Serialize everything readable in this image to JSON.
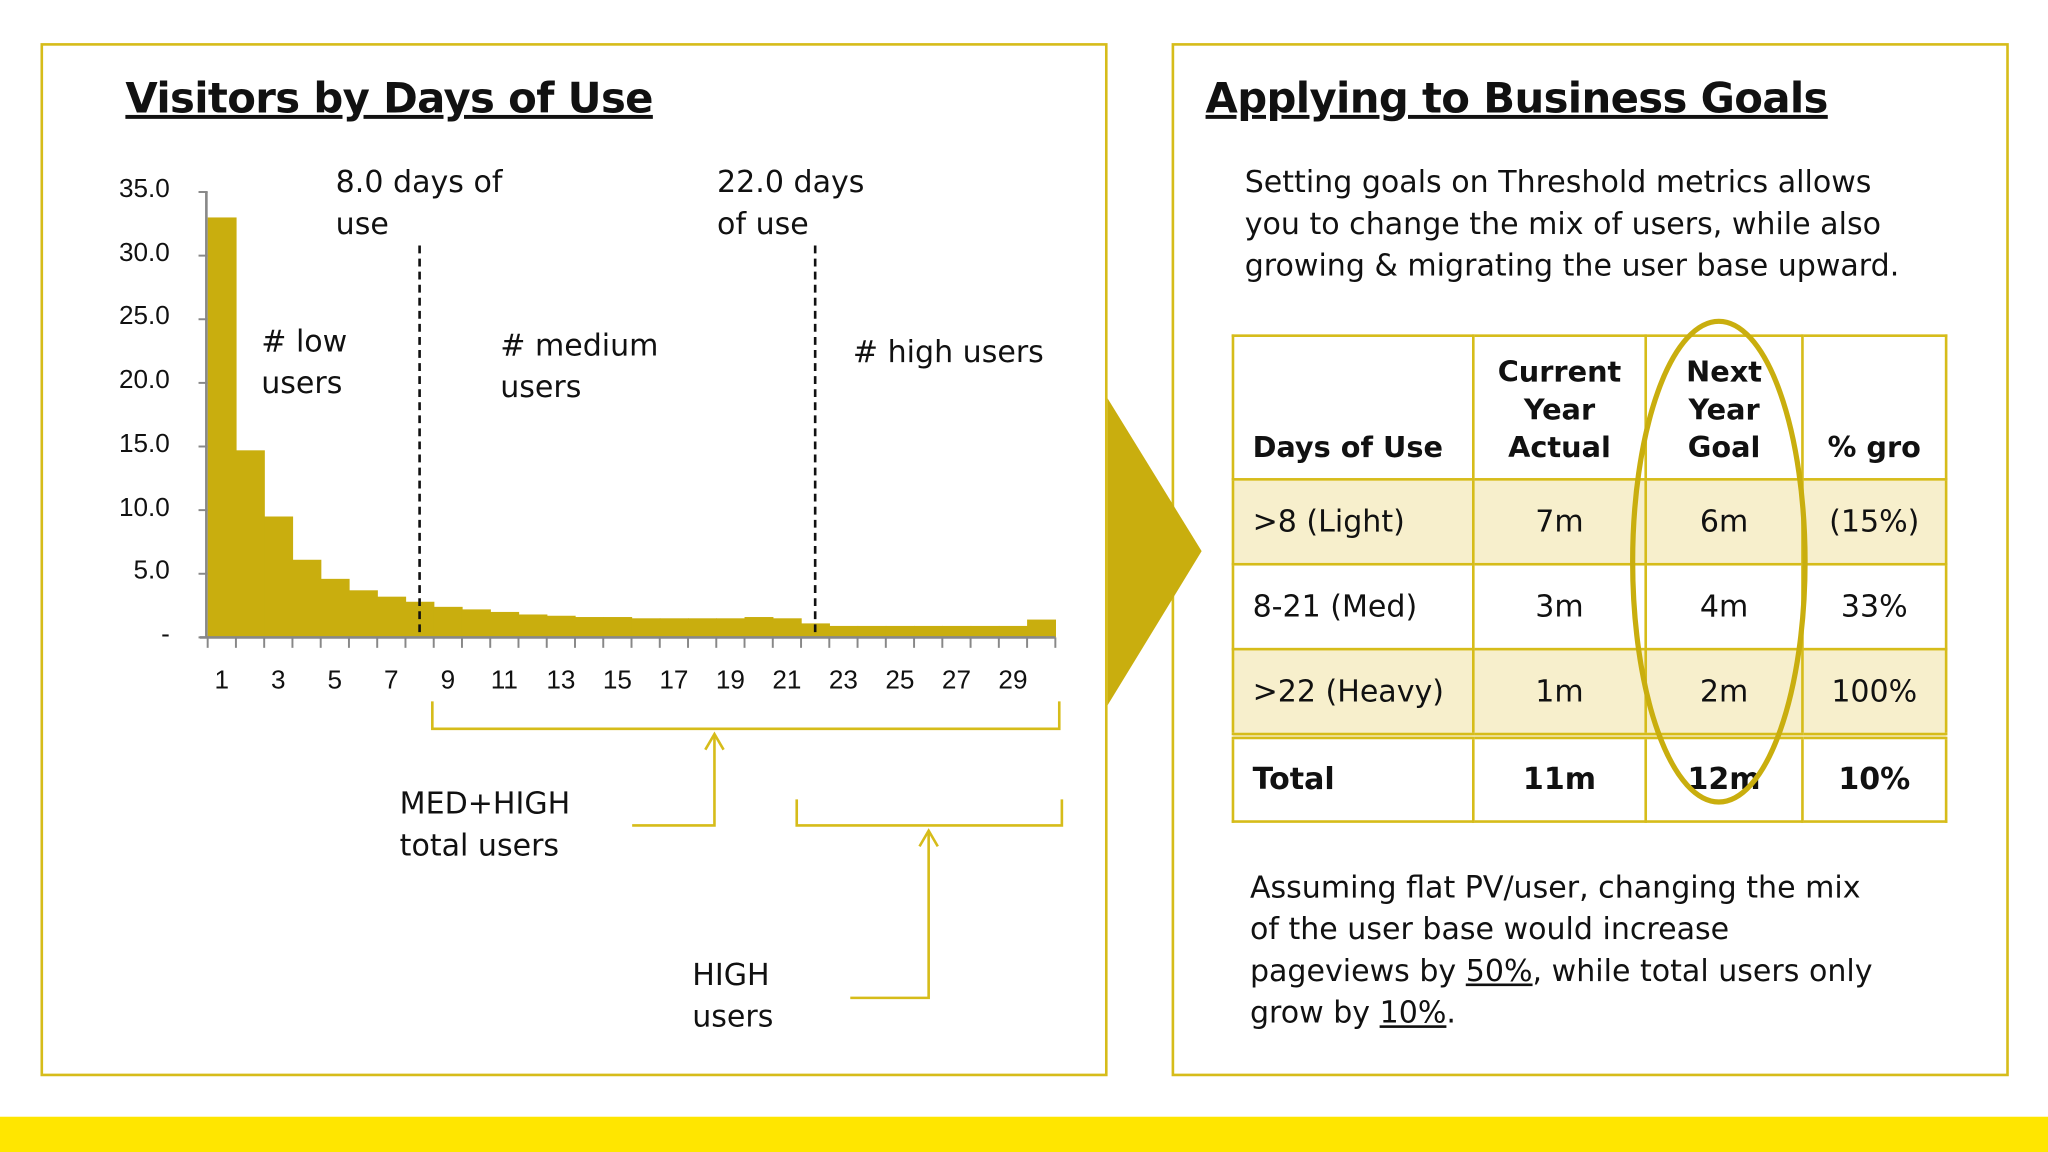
{
  "colors": {
    "accent": "#D6BC1A",
    "bar": "#C9AE0E",
    "band": "#FFE600",
    "row_highlight": "#F7EFCC"
  },
  "left": {
    "title": "Visitors by Days of Use",
    "marker1": "8.0 days of\nuse",
    "marker2": "22.0 days\nof use",
    "label_low": "# low\nusers",
    "label_medium": "# medium\nusers",
    "label_high": "# high users",
    "callout_medhigh": "MED+HIGH\ntotal users",
    "callout_high": "HIGH\nusers"
  },
  "chart_data": {
    "type": "bar",
    "x": [
      1,
      2,
      3,
      4,
      5,
      6,
      7,
      8,
      9,
      10,
      11,
      12,
      13,
      14,
      15,
      16,
      17,
      18,
      19,
      20,
      21,
      22,
      23,
      24,
      25,
      26,
      27,
      28,
      29,
      30
    ],
    "values": [
      33.0,
      14.7,
      9.5,
      6.1,
      4.6,
      3.7,
      3.2,
      2.8,
      2.4,
      2.2,
      2.0,
      1.8,
      1.7,
      1.6,
      1.6,
      1.5,
      1.5,
      1.5,
      1.5,
      1.6,
      1.5,
      1.1,
      0.9,
      0.9,
      0.9,
      0.9,
      0.9,
      0.9,
      0.9,
      1.4
    ],
    "x_tick_labels": [
      "1",
      "3",
      "5",
      "7",
      "9",
      "11",
      "13",
      "15",
      "17",
      "19",
      "21",
      "23",
      "25",
      "27",
      "29"
    ],
    "y_tick_labels": [
      "-",
      "5.0",
      "10.0",
      "15.0",
      "20.0",
      "25.0",
      "30.0",
      "35.0"
    ],
    "ylim": [
      0,
      35
    ],
    "reference_lines": [
      8.0,
      22.0
    ],
    "grid": false
  },
  "right": {
    "title": "Applying to Business Goals",
    "intro": "Setting goals on Threshold metrics allows\nyou to change the mix of users, while also\ngrowing & migrating the user base upward.",
    "table": {
      "headers": [
        "Days of Use",
        "Current\nYear\nActual",
        "Next\nYear\nGoal",
        "% gro"
      ],
      "rows": [
        [
          ">8 (Light)",
          "7m",
          "6m",
          "(15%)"
        ],
        [
          "8-21 (Med)",
          "3m",
          "4m",
          "33%"
        ],
        [
          ">22 (Heavy)",
          "1m",
          "2m",
          "100%"
        ]
      ],
      "total": [
        "Total",
        "11m",
        "12m",
        "10%"
      ]
    },
    "outro_1": "Assuming flat PV/user, changing the mix\nof the user base would increase\npageviews by ",
    "outro_pv": "50%",
    "outro_2": ", while total users only\ngrow by ",
    "outro_users": "10%",
    "outro_3": "."
  }
}
